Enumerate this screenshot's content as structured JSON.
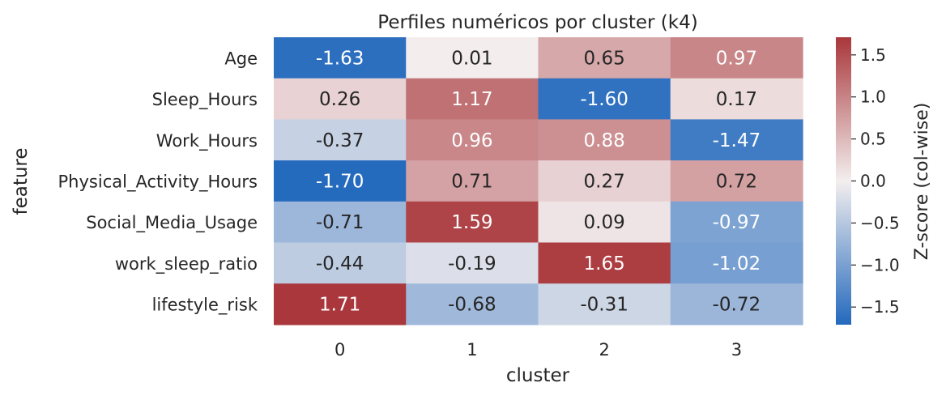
{
  "chart_data": {
    "type": "heatmap",
    "title": "Perfiles numéricos por cluster (k4)",
    "xlabel": "cluster",
    "ylabel": "feature",
    "x_categories": [
      "0",
      "1",
      "2",
      "3"
    ],
    "y_categories": [
      "Age",
      "Sleep_Hours",
      "Work_Hours",
      "Physical_Activity_Hours",
      "Social_Media_Usage",
      "work_sleep_ratio",
      "lifestyle_risk"
    ],
    "values": [
      [
        -1.63,
        0.01,
        0.65,
        0.97
      ],
      [
        0.26,
        1.17,
        -1.6,
        0.17
      ],
      [
        -0.37,
        0.96,
        0.88,
        -1.47
      ],
      [
        -1.7,
        0.71,
        0.27,
        0.72
      ],
      [
        -0.71,
        1.59,
        0.09,
        -0.97
      ],
      [
        -0.44,
        -0.19,
        1.65,
        -1.02
      ],
      [
        1.71,
        -0.68,
        -0.31,
        -0.72
      ]
    ],
    "value_format": "2 decimals",
    "colormap": "vlag (blue-white-red, diverging)",
    "vmin": -1.71,
    "vmax": 1.71,
    "colorbar": {
      "label": "Z-score (col-wise)",
      "ticks": [
        1.5,
        1.0,
        0.5,
        0.0,
        -0.5,
        -1.0,
        -1.5
      ],
      "tick_labels": [
        "1.5",
        "1.0",
        "0.5",
        "0.0",
        "−0.5",
        "−1.0",
        "−1.5"
      ]
    },
    "colors": {
      "low": "#2369bd",
      "mid": "#f3eeee",
      "high": "#a9373b",
      "text_dark": "#262626",
      "text_light": "#ffffff"
    }
  }
}
